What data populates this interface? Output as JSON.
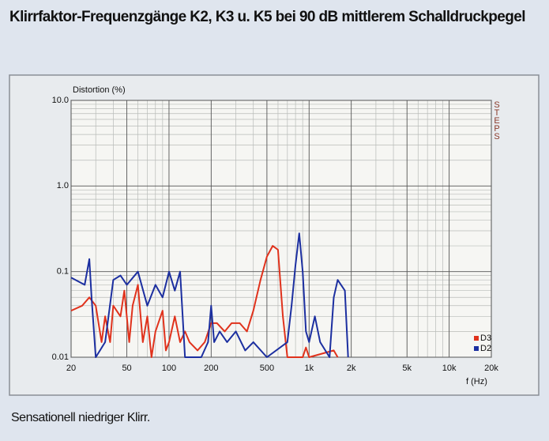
{
  "chart_data": {
    "type": "line",
    "title": "Klirrfaktor-Frequenzgänge K2, K3 u. K5 bei 90 dB mittlerem Schalldruckpegel",
    "caption": "Sensationell niedriger Klirr.",
    "ylabel": "Distortion (%)",
    "xlabel": "f (Hz)",
    "brand": "STEPS",
    "xscale": "log",
    "yscale": "log",
    "grid": true,
    "xlim": [
      20,
      20000
    ],
    "ylim": [
      0.01,
      10
    ],
    "xticks": [
      20,
      50,
      100,
      200,
      500,
      {
        "value": 1000,
        "label": "1k"
      },
      {
        "value": 2000,
        "label": "2k"
      },
      {
        "value": 5000,
        "label": "5k"
      },
      {
        "value": 10000,
        "label": "10k"
      },
      {
        "value": 20000,
        "label": "20k"
      }
    ],
    "yticks": [
      0.01,
      0.1,
      {
        "value": 1,
        "label": "1.0"
      },
      {
        "value": 10,
        "label": "10.0"
      }
    ],
    "xminorticks": [
      30,
      40,
      60,
      70,
      80,
      90,
      300,
      400,
      600,
      700,
      800,
      900,
      3000,
      4000,
      6000,
      7000,
      8000,
      9000
    ],
    "yminorticks": [
      0.02,
      0.03,
      0.04,
      0.05,
      0.06,
      0.07,
      0.08,
      0.09,
      0.2,
      0.3,
      0.4,
      0.5,
      0.6,
      0.7,
      0.8,
      0.9,
      2,
      3,
      4,
      5,
      6,
      7,
      8,
      9
    ],
    "legend": "lower right",
    "series": [
      {
        "name": "D3",
        "color": "#e0321c",
        "x": [
          20,
          24,
          27,
          30,
          33,
          35,
          38,
          40,
          45,
          48,
          52,
          55,
          60,
          65,
          70,
          75,
          80,
          90,
          95,
          100,
          110,
          120,
          130,
          140,
          160,
          180,
          200,
          220,
          250,
          280,
          320,
          360,
          400,
          450,
          500,
          550,
          600,
          650,
          700,
          900,
          950,
          1000,
          1500,
          1600
        ],
        "values": [
          0.035,
          0.04,
          0.05,
          0.04,
          0.015,
          0.03,
          0.015,
          0.04,
          0.03,
          0.06,
          0.015,
          0.04,
          0.07,
          0.015,
          0.03,
          0.01,
          0.02,
          0.035,
          0.012,
          0.015,
          0.03,
          0.015,
          0.02,
          0.015,
          0.012,
          0.015,
          0.025,
          0.025,
          0.02,
          0.025,
          0.025,
          0.02,
          0.035,
          0.08,
          0.15,
          0.2,
          0.18,
          0.03,
          0.01,
          0.01,
          0.013,
          0.01,
          0.012,
          0.01
        ]
      },
      {
        "name": "D2",
        "color": "#1c2fa0",
        "x": [
          20,
          25,
          27,
          28,
          30,
          35,
          40,
          45,
          50,
          60,
          70,
          80,
          90,
          100,
          110,
          120,
          130,
          170,
          190,
          200,
          210,
          230,
          260,
          300,
          350,
          400,
          500,
          700,
          750,
          800,
          850,
          900,
          950,
          1000,
          1100,
          1200,
          1400,
          1500,
          1600,
          1800,
          1900
        ],
        "values": [
          0.085,
          0.07,
          0.14,
          0.05,
          0.01,
          0.015,
          0.08,
          0.09,
          0.07,
          0.1,
          0.04,
          0.07,
          0.05,
          0.1,
          0.06,
          0.1,
          0.01,
          0.01,
          0.015,
          0.04,
          0.015,
          0.02,
          0.015,
          0.02,
          0.012,
          0.015,
          0.01,
          0.015,
          0.04,
          0.12,
          0.28,
          0.1,
          0.02,
          0.015,
          0.03,
          0.015,
          0.01,
          0.05,
          0.08,
          0.06,
          0.01
        ]
      }
    ]
  }
}
